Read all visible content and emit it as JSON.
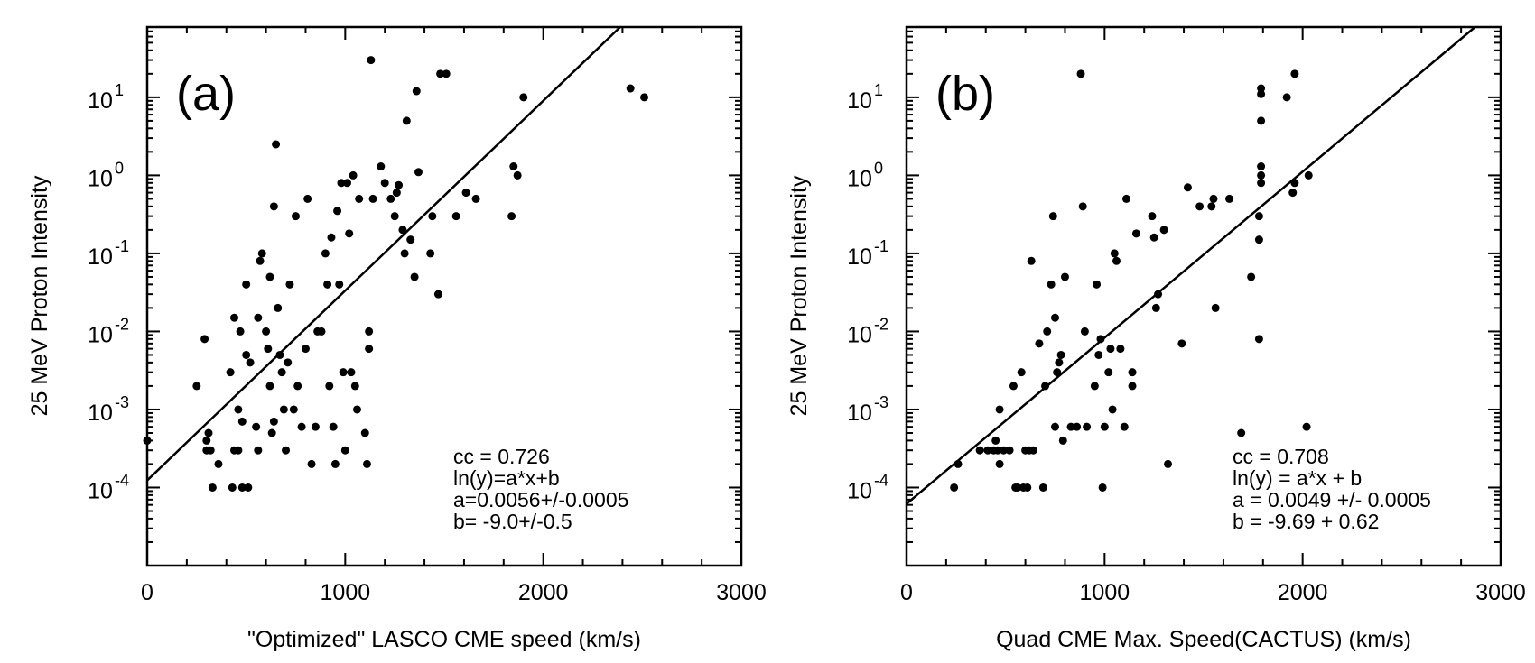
{
  "chart_data": [
    {
      "type": "scatter",
      "panel_label": "(a)",
      "xlabel": "\"Optimized\" LASCO CME speed (km/s)",
      "ylabel": "25 MeV Proton Intensity",
      "xlim": [
        0,
        3000
      ],
      "ylim_log10": [
        -5,
        1.9
      ],
      "x_ticks": [
        {
          "v": 0,
          "label": "0"
        },
        {
          "v": 1000,
          "label": "1000"
        },
        {
          "v": 2000,
          "label": "2000"
        },
        {
          "v": 3000,
          "label": "3000"
        }
      ],
      "y_ticks": [
        {
          "exp": -4,
          "base": "10",
          "sup": "-4"
        },
        {
          "exp": -3,
          "base": "10",
          "sup": "-3"
        },
        {
          "exp": -2,
          "base": "10",
          "sup": "-2"
        },
        {
          "exp": -1,
          "base": "10",
          "sup": "-1"
        },
        {
          "exp": 0,
          "base": "10",
          "sup": "0"
        },
        {
          "exp": 1,
          "base": "10",
          "sup": "1"
        }
      ],
      "annotations": [
        "cc = 0.726",
        "ln(y)=a*x+b",
        "a=0.0056+/-0.0005",
        "b= -9.0+/-0.5"
      ],
      "fit": {
        "a": 0.0056,
        "b": -9.0
      },
      "points": [
        [
          0,
          0.0004
        ],
        [
          250,
          0.002
        ],
        [
          290,
          0.008
        ],
        [
          300,
          0.0004
        ],
        [
          300,
          0.0003
        ],
        [
          310,
          0.0005
        ],
        [
          320,
          0.0003
        ],
        [
          330,
          0.0001
        ],
        [
          360,
          0.0002
        ],
        [
          420,
          0.003
        ],
        [
          430,
          0.0001
        ],
        [
          440,
          0.0003
        ],
        [
          440,
          0.015
        ],
        [
          460,
          0.001
        ],
        [
          460,
          0.0003
        ],
        [
          470,
          0.01
        ],
        [
          480,
          0.0001
        ],
        [
          480,
          0.0007
        ],
        [
          500,
          0.04
        ],
        [
          500,
          0.005
        ],
        [
          510,
          0.0001
        ],
        [
          520,
          0.004
        ],
        [
          550,
          0.0006
        ],
        [
          560,
          0.0003
        ],
        [
          560,
          0.015
        ],
        [
          570,
          0.08
        ],
        [
          580,
          0.1
        ],
        [
          600,
          0.01
        ],
        [
          610,
          0.006
        ],
        [
          620,
          0.05
        ],
        [
          620,
          0.002
        ],
        [
          630,
          0.0005
        ],
        [
          640,
          0.0007
        ],
        [
          640,
          0.4
        ],
        [
          650,
          2.5
        ],
        [
          660,
          0.02
        ],
        [
          670,
          0.005
        ],
        [
          680,
          0.003
        ],
        [
          690,
          0.001
        ],
        [
          700,
          0.0003
        ],
        [
          710,
          0.004
        ],
        [
          720,
          0.04
        ],
        [
          740,
          0.001
        ],
        [
          750,
          0.3
        ],
        [
          760,
          0.002
        ],
        [
          780,
          0.0006
        ],
        [
          800,
          0.006
        ],
        [
          810,
          0.5
        ],
        [
          830,
          0.0002
        ],
        [
          850,
          0.0006
        ],
        [
          860,
          0.01
        ],
        [
          880,
          0.01
        ],
        [
          900,
          0.1
        ],
        [
          910,
          0.04
        ],
        [
          920,
          0.002
        ],
        [
          930,
          0.16
        ],
        [
          940,
          0.0006
        ],
        [
          950,
          0.0002
        ],
        [
          960,
          0.35
        ],
        [
          970,
          0.04
        ],
        [
          980,
          0.8
        ],
        [
          990,
          0.003
        ],
        [
          1000,
          0.0003
        ],
        [
          1010,
          0.8
        ],
        [
          1020,
          0.18
        ],
        [
          1030,
          0.003
        ],
        [
          1040,
          1.0
        ],
        [
          1050,
          0.002
        ],
        [
          1060,
          0.001
        ],
        [
          1070,
          0.5
        ],
        [
          1100,
          0.0005
        ],
        [
          1110,
          0.0002
        ],
        [
          1120,
          0.01
        ],
        [
          1120,
          0.006
        ],
        [
          1130,
          30
        ],
        [
          1140,
          0.5
        ],
        [
          1180,
          1.3
        ],
        [
          1200,
          0.8
        ],
        [
          1230,
          0.5
        ],
        [
          1250,
          0.3
        ],
        [
          1260,
          0.6
        ],
        [
          1270,
          0.75
        ],
        [
          1290,
          0.2
        ],
        [
          1300,
          0.1
        ],
        [
          1310,
          5
        ],
        [
          1330,
          0.15
        ],
        [
          1350,
          0.05
        ],
        [
          1360,
          12
        ],
        [
          1370,
          1.1
        ],
        [
          1430,
          0.1
        ],
        [
          1440,
          0.3
        ],
        [
          1470,
          0.03
        ],
        [
          1480,
          20
        ],
        [
          1510,
          20
        ],
        [
          1560,
          0.3
        ],
        [
          1610,
          0.6
        ],
        [
          1660,
          0.5
        ],
        [
          1840,
          0.3
        ],
        [
          1850,
          1.3
        ],
        [
          1870,
          1.0
        ],
        [
          1900,
          10
        ],
        [
          2440,
          13
        ],
        [
          2510,
          10
        ]
      ]
    },
    {
      "type": "scatter",
      "panel_label": "(b)",
      "xlabel": "Quad CME Max. Speed(CACTUS) (km/s)",
      "ylabel": "25 MeV Proton Intensity",
      "xlim": [
        0,
        3000
      ],
      "ylim_log10": [
        -5,
        1.9
      ],
      "x_ticks": [
        {
          "v": 0,
          "label": "0"
        },
        {
          "v": 1000,
          "label": "1000"
        },
        {
          "v": 2000,
          "label": "2000"
        },
        {
          "v": 3000,
          "label": "3000"
        }
      ],
      "y_ticks": [
        {
          "exp": -4,
          "base": "10",
          "sup": "-4"
        },
        {
          "exp": -3,
          "base": "10",
          "sup": "-3"
        },
        {
          "exp": -2,
          "base": "10",
          "sup": "-2"
        },
        {
          "exp": -1,
          "base": "10",
          "sup": "-1"
        },
        {
          "exp": 0,
          "base": "10",
          "sup": "0"
        },
        {
          "exp": 1,
          "base": "10",
          "sup": "1"
        }
      ],
      "annotations": [
        "cc = 0.708",
        "ln(y) = a*x + b",
        "a = 0.0049 +/- 0.0005",
        "b = -9.69 + 0.62"
      ],
      "fit": {
        "a": 0.0049,
        "b": -9.69
      },
      "points": [
        [
          240,
          0.0001
        ],
        [
          260,
          0.0002
        ],
        [
          370,
          0.0003
        ],
        [
          410,
          0.0003
        ],
        [
          440,
          0.0003
        ],
        [
          450,
          0.0004
        ],
        [
          460,
          0.0003
        ],
        [
          470,
          0.001
        ],
        [
          470,
          0.0002
        ],
        [
          490,
          0.0003
        ],
        [
          520,
          0.0003
        ],
        [
          540,
          0.002
        ],
        [
          550,
          0.0001
        ],
        [
          560,
          0.0001
        ],
        [
          580,
          0.003
        ],
        [
          590,
          0.0001
        ],
        [
          600,
          0.0003
        ],
        [
          610,
          0.0001
        ],
        [
          620,
          0.0003
        ],
        [
          630,
          0.08
        ],
        [
          640,
          0.0003
        ],
        [
          670,
          0.007
        ],
        [
          690,
          0.0001
        ],
        [
          700,
          0.002
        ],
        [
          710,
          0.01
        ],
        [
          730,
          0.04
        ],
        [
          740,
          0.3
        ],
        [
          750,
          0.0006
        ],
        [
          750,
          0.015
        ],
        [
          760,
          0.003
        ],
        [
          770,
          0.004
        ],
        [
          780,
          0.005
        ],
        [
          790,
          0.0004
        ],
        [
          800,
          0.05
        ],
        [
          830,
          0.0006
        ],
        [
          860,
          0.0006
        ],
        [
          880,
          20
        ],
        [
          890,
          0.4
        ],
        [
          900,
          0.01
        ],
        [
          910,
          0.0006
        ],
        [
          950,
          0.002
        ],
        [
          960,
          0.04
        ],
        [
          970,
          0.005
        ],
        [
          980,
          0.008
        ],
        [
          990,
          0.0001
        ],
        [
          1000,
          0.0006
        ],
        [
          1020,
          0.003
        ],
        [
          1030,
          0.006
        ],
        [
          1040,
          0.001
        ],
        [
          1050,
          0.1
        ],
        [
          1060,
          0.08
        ],
        [
          1080,
          0.006
        ],
        [
          1100,
          0.0006
        ],
        [
          1110,
          0.5
        ],
        [
          1140,
          0.003
        ],
        [
          1140,
          0.002
        ],
        [
          1160,
          0.18
        ],
        [
          1240,
          0.3
        ],
        [
          1250,
          0.16
        ],
        [
          1260,
          0.02
        ],
        [
          1270,
          0.03
        ],
        [
          1300,
          0.2
        ],
        [
          1320,
          0.0002
        ],
        [
          1390,
          0.007
        ],
        [
          1420,
          0.7
        ],
        [
          1480,
          0.4
        ],
        [
          1540,
          0.4
        ],
        [
          1550,
          0.5
        ],
        [
          1560,
          0.02
        ],
        [
          1630,
          0.5
        ],
        [
          1690,
          0.0005
        ],
        [
          1740,
          0.05
        ],
        [
          1780,
          0.008
        ],
        [
          1780,
          0.15
        ],
        [
          1780,
          0.3
        ],
        [
          1790,
          0.8
        ],
        [
          1790,
          1.0
        ],
        [
          1790,
          1.3
        ],
        [
          1790,
          5
        ],
        [
          1790,
          11
        ],
        [
          1790,
          13
        ],
        [
          1920,
          10
        ],
        [
          1950,
          0.6
        ],
        [
          1960,
          0.8
        ],
        [
          1960,
          20
        ],
        [
          2020,
          0.0006
        ],
        [
          2030,
          1.0
        ]
      ]
    }
  ]
}
